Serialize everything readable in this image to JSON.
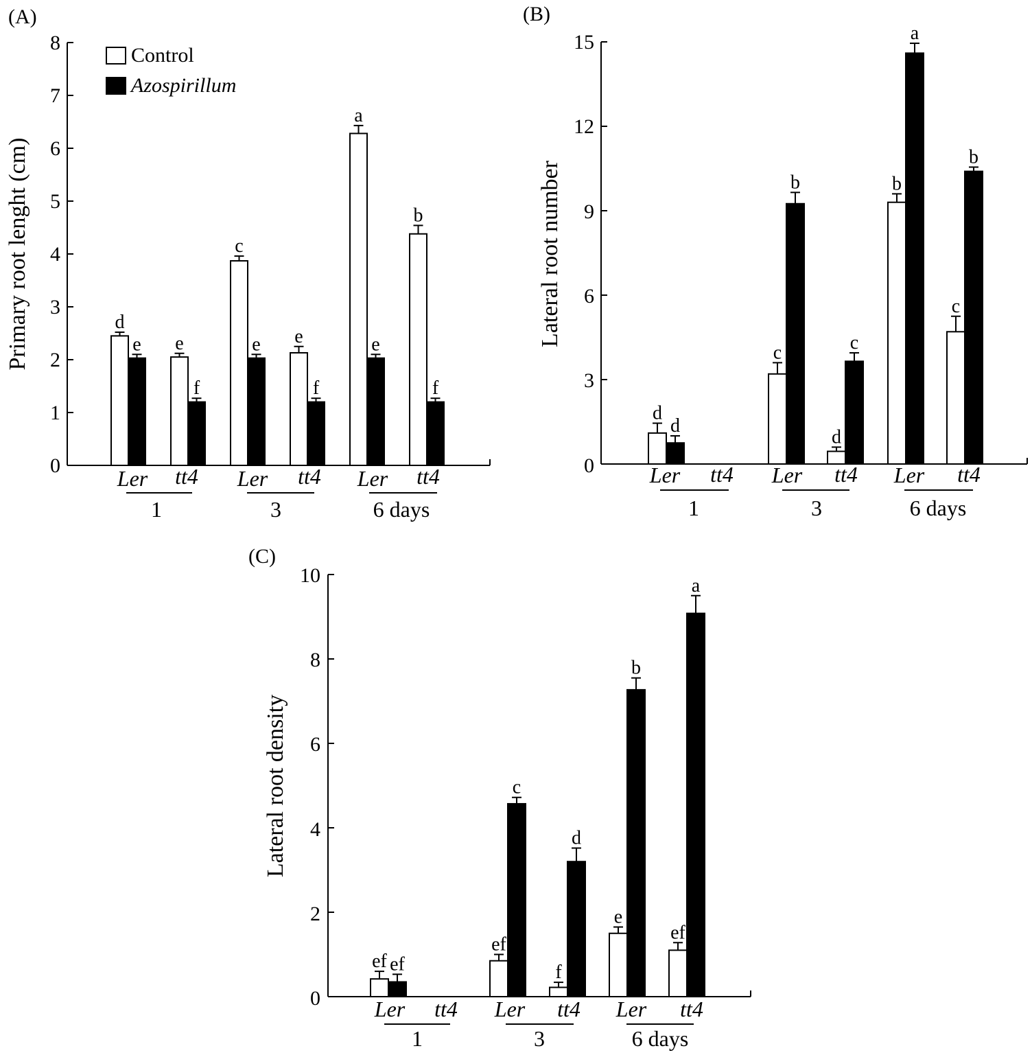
{
  "legend": {
    "control_label": "Control",
    "azo_label": "Azospirillum",
    "control_color": "#ffffff",
    "azo_color": "#000000"
  },
  "chart_data": [
    {
      "panel_label": "(A)",
      "type": "bar",
      "ylabel": "Primary root lenght (cm)",
      "ylim": [
        0,
        8
      ],
      "yticks": [
        "0",
        "1",
        "2",
        "3",
        "4",
        "5",
        "6",
        "7",
        "8"
      ],
      "genotype_labels": [
        "Ler",
        "tt4",
        "Ler",
        "tt4",
        "Ler",
        "tt4"
      ],
      "day_labels": [
        "1",
        "3",
        "6 days"
      ],
      "series": [
        {
          "name": "Control",
          "values": [
            2.45,
            2.05,
            3.87,
            2.13,
            6.28,
            4.38
          ],
          "errors": [
            0.07,
            0.07,
            0.09,
            0.12,
            0.15,
            0.16
          ],
          "letters": [
            "d",
            "e",
            "c",
            "e",
            "a",
            "b"
          ]
        },
        {
          "name": "Azospirillum",
          "values": [
            2.03,
            1.2,
            2.03,
            1.2,
            2.03,
            1.2
          ],
          "errors": [
            0.07,
            0.07,
            0.07,
            0.07,
            0.07,
            0.07
          ],
          "letters": [
            "e",
            "f",
            "e",
            "f",
            "e",
            "f"
          ]
        }
      ]
    },
    {
      "panel_label": "(B)",
      "type": "bar",
      "ylabel": "Lateral root number",
      "ylim": [
        0,
        15
      ],
      "yticks": [
        "0",
        "3",
        "6",
        "9",
        "12",
        "15"
      ],
      "genotype_labels": [
        "Ler",
        "tt4",
        "Ler",
        "tt4",
        "Ler",
        "tt4"
      ],
      "day_labels": [
        "1",
        "3",
        "6 days"
      ],
      "series": [
        {
          "name": "Control",
          "values": [
            1.1,
            0,
            3.2,
            0.45,
            9.3,
            4.7
          ],
          "errors": [
            0.35,
            0,
            0.4,
            0.15,
            0.3,
            0.55
          ],
          "letters": [
            "d",
            "",
            "c",
            "d",
            "b",
            "c"
          ]
        },
        {
          "name": "Azospirillum",
          "values": [
            0.75,
            0,
            9.25,
            3.65,
            14.6,
            10.4
          ],
          "errors": [
            0.25,
            0,
            0.4,
            0.3,
            0.35,
            0.15
          ],
          "letters": [
            "d",
            "",
            "b",
            "c",
            "a",
            "b"
          ]
        }
      ]
    },
    {
      "panel_label": "(C)",
      "type": "bar",
      "ylabel": "Lateral root density",
      "ylim": [
        0,
        10
      ],
      "yticks": [
        "0",
        "2",
        "4",
        "6",
        "8",
        "10"
      ],
      "genotype_labels": [
        "Ler",
        "tt4",
        "Ler",
        "tt4",
        "Ler",
        "tt4"
      ],
      "day_labels": [
        "1",
        "3",
        "6 days"
      ],
      "series": [
        {
          "name": "Control",
          "values": [
            0.42,
            0,
            0.85,
            0.22,
            1.5,
            1.1
          ],
          "errors": [
            0.18,
            0,
            0.15,
            0.12,
            0.15,
            0.18
          ],
          "letters": [
            "ef",
            "",
            "ef",
            "f",
            "e",
            "ef"
          ]
        },
        {
          "name": "Azospirillum",
          "values": [
            0.35,
            0,
            4.57,
            3.2,
            7.27,
            9.08
          ],
          "errors": [
            0.18,
            0,
            0.15,
            0.32,
            0.28,
            0.42
          ],
          "letters": [
            "ef",
            "",
            "c",
            "d",
            "b",
            "a"
          ]
        }
      ]
    }
  ]
}
